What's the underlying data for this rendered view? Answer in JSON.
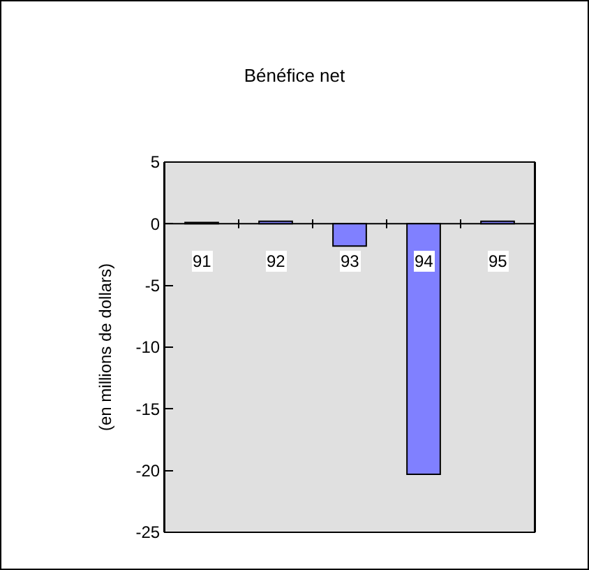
{
  "chart_data": {
    "type": "bar",
    "title": "Bénéfice net",
    "ylabel": "(en millions de dollars)",
    "categories": [
      "91",
      "92",
      "93",
      "94",
      "95"
    ],
    "values": [
      0.1,
      0.2,
      -1.8,
      -20.3,
      0.2
    ],
    "color": "#8080ff",
    "ylim": [
      -25,
      5
    ],
    "yticks": [
      -25,
      -20,
      -15,
      -10,
      -5,
      0,
      5
    ],
    "grid": false,
    "legend": false
  }
}
